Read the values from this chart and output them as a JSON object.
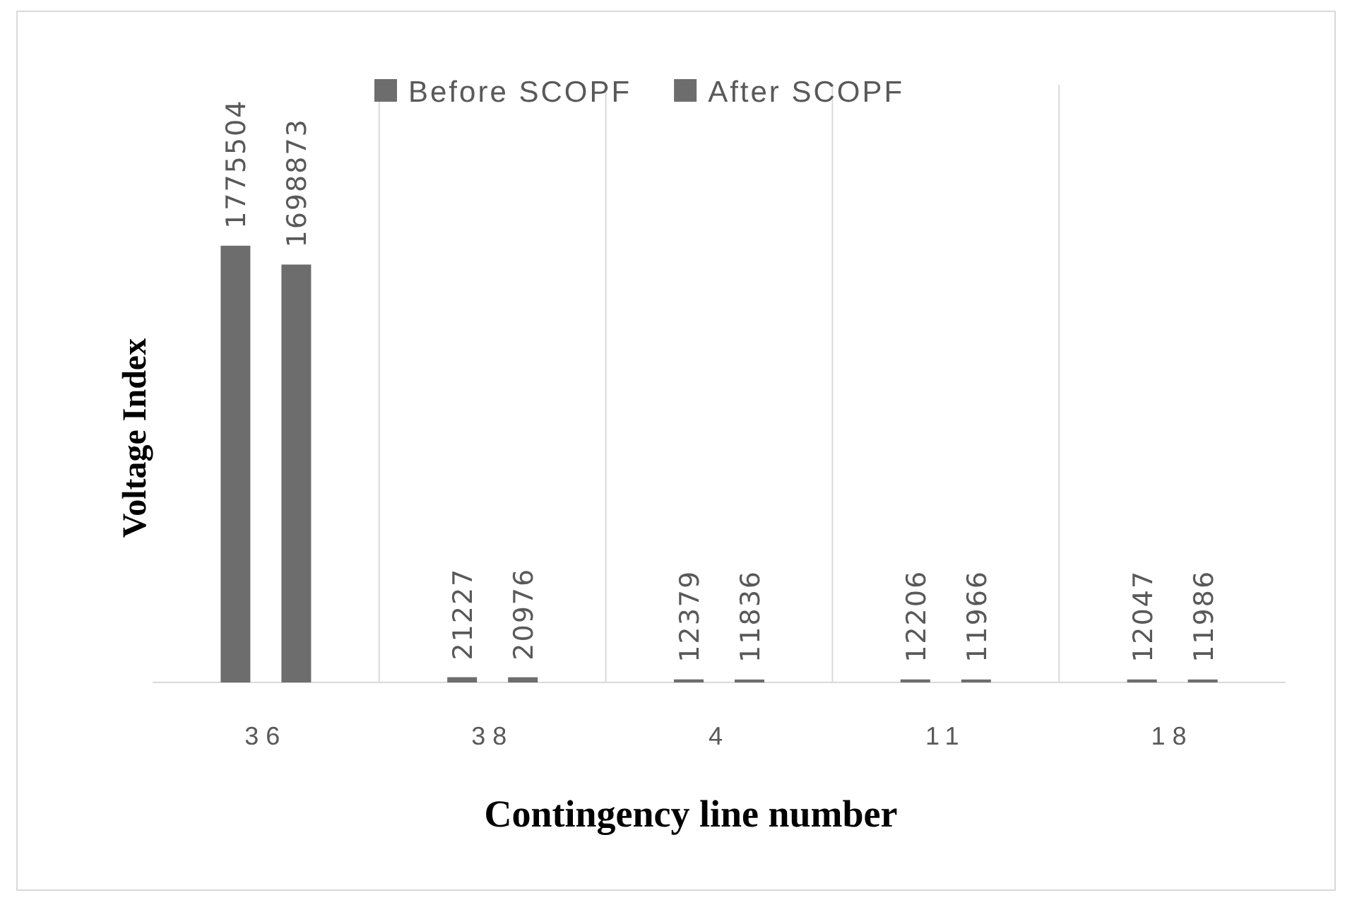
{
  "chart_data": {
    "type": "bar",
    "xlabel": "Contingency  line number",
    "ylabel": "Voltage Index",
    "categories": [
      "36",
      "38",
      "4",
      "11",
      "18"
    ],
    "series": [
      {
        "name": "Before SCOPF",
        "color": "#6d6d6d",
        "values": [
          1775504,
          21227,
          12379,
          12206,
          12047
        ]
      },
      {
        "name": "After SCOPF",
        "color": "#6d6d6d",
        "values": [
          1698873,
          20976,
          11836,
          11966,
          11986
        ]
      }
    ],
    "data_labels": true,
    "legend": "top",
    "grid": "x"
  }
}
